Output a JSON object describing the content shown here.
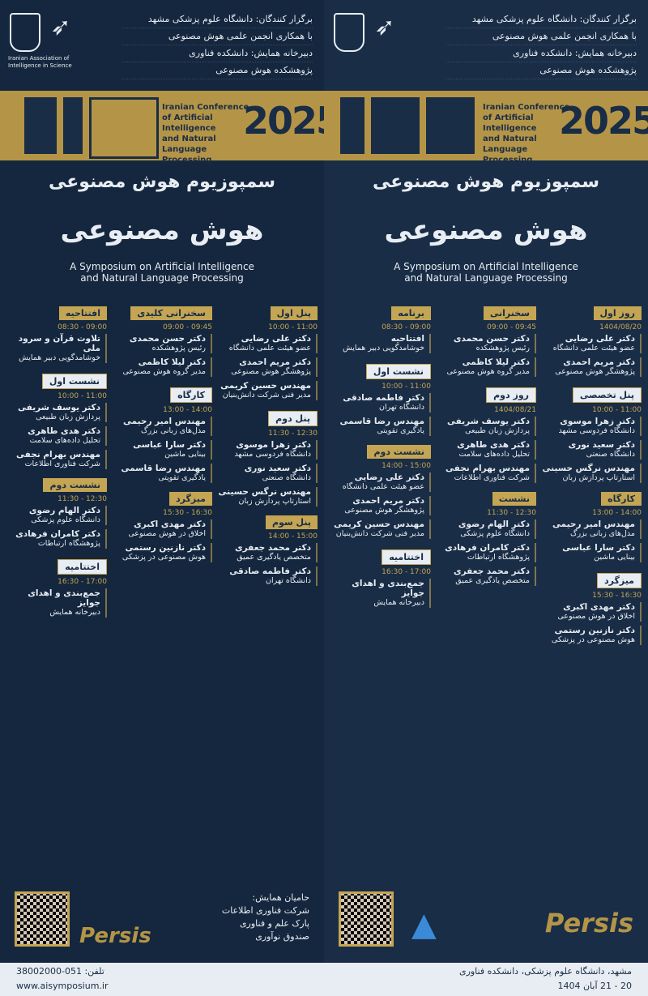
{
  "header": {
    "lines": [
      "برگزار کنندگان: دانشگاه علوم پزشکی مشهد",
      "با همکاری انجمن علمی هوش مصنوعی",
      "دبیرخانه همایش: دانشکده فناوری",
      "پژوهشکده هوش مصنوعی"
    ],
    "logo_caption": "Iranian Association of Intelligence in Science"
  },
  "event": {
    "year": "2025",
    "english_lines": [
      "Iranian Conference",
      "of Artificial Intelligence",
      "and Natural",
      "Language Processing"
    ],
    "title": "سمپوزیوم هوش مصنوعی",
    "title_large": "هوش مصنوعی",
    "subtitle_lines": [
      "A Symposium on Artificial Intelligence",
      "and Natural Language Processing"
    ]
  },
  "left_columns": [
    {
      "sections": [
        {
          "tag": "پنل اول",
          "time": "10:00 - 11:00",
          "entries": [
            {
              "name": "دکتر علی رضایی",
              "role": "عضو هیئت علمی دانشگاه"
            },
            {
              "name": "دکتر مریم احمدی",
              "role": "پژوهشگر هوش مصنوعی"
            },
            {
              "name": "مهندس حسین کریمی",
              "role": "مدیر فنی شرکت دانش‌بنیان"
            }
          ]
        },
        {
          "tag": "پنل دوم",
          "time": "11:30 - 12:30",
          "entries": [
            {
              "name": "دکتر زهرا موسوی",
              "role": "دانشگاه فردوسی مشهد"
            },
            {
              "name": "دکتر سعید نوری",
              "role": "دانشگاه صنعتی"
            },
            {
              "name": "مهندس نرگس حسینی",
              "role": "استارتاپ پردازش زبان"
            }
          ]
        },
        {
          "tag": "پنل سوم",
          "time": "14:00 - 15:00",
          "entries": [
            {
              "name": "دکتر محمد جعفری",
              "role": "متخصص یادگیری عمیق"
            },
            {
              "name": "دکتر فاطمه صادقی",
              "role": "دانشگاه تهران"
            }
          ]
        }
      ]
    },
    {
      "sections": [
        {
          "tag": "سخنرانی کلیدی",
          "time": "09:00 - 09:45",
          "entries": [
            {
              "name": "دکتر حسن محمدی",
              "role": "رئیس پژوهشکده"
            },
            {
              "name": "دکتر لیلا کاظمی",
              "role": "مدیر گروه هوش مصنوعی"
            }
          ]
        },
        {
          "tag": "کارگاه",
          "time": "13:00 - 14:00",
          "entries": [
            {
              "name": "مهندس امیر رحیمی",
              "role": "مدل‌های زبانی بزرگ"
            },
            {
              "name": "دکتر سارا عباسی",
              "role": "بینایی ماشین"
            },
            {
              "name": "مهندس رضا قاسمی",
              "role": "یادگیری تقویتی"
            }
          ]
        },
        {
          "tag": "میزگرد",
          "time": "15:30 - 16:30",
          "entries": [
            {
              "name": "دکتر مهدی اکبری",
              "role": "اخلاق در هوش مصنوعی"
            },
            {
              "name": "دکتر نازنین رستمی",
              "role": "هوش مصنوعی در پزشکی"
            }
          ]
        }
      ]
    },
    {
      "sections": [
        {
          "tag": "افتتاحیه",
          "time": "08:30 - 09:00",
          "entries": [
            {
              "name": "تلاوت قرآن و سرود ملی",
              "role": "خوشامدگویی دبیر همایش"
            }
          ]
        },
        {
          "tag": "نشست اول",
          "time": "10:00 - 11:00",
          "entries": [
            {
              "name": "دکتر یوسف شریفی",
              "role": "پردازش زبان طبیعی"
            },
            {
              "name": "دکتر هدی طاهری",
              "role": "تحلیل داده‌های سلامت"
            },
            {
              "name": "مهندس بهرام نجفی",
              "role": "شرکت فناوری اطلاعات"
            }
          ]
        },
        {
          "tag": "نشست دوم",
          "time": "11:30 - 12:30",
          "entries": [
            {
              "name": "دکتر الهام رضوی",
              "role": "دانشگاه علوم پزشکی"
            },
            {
              "name": "دکتر کامران فرهادی",
              "role": "پژوهشگاه ارتباطات"
            }
          ]
        },
        {
          "tag": "اختتامیه",
          "time": "16:30 - 17:00",
          "entries": [
            {
              "name": "جمع‌بندی و اهدای جوایز",
              "role": "دبیرخانه همایش"
            }
          ]
        }
      ]
    }
  ],
  "right_columns": [
    {
      "sections": [
        {
          "tag": "روز اول",
          "time": "1404/08/20",
          "entries": [
            {
              "name": "دکتر علی رضایی",
              "role": "عضو هیئت علمی دانشگاه"
            },
            {
              "name": "دکتر مریم احمدی",
              "role": "پژوهشگر هوش مصنوعی"
            }
          ]
        },
        {
          "tag": "پنل تخصصی",
          "time": "10:00 - 11:00",
          "entries": [
            {
              "name": "دکتر زهرا موسوی",
              "role": "دانشگاه فردوسی مشهد"
            },
            {
              "name": "دکتر سعید نوری",
              "role": "دانشگاه صنعتی"
            },
            {
              "name": "مهندس نرگس حسینی",
              "role": "استارتاپ پردازش زبان"
            }
          ]
        },
        {
          "tag": "کارگاه",
          "time": "13:00 - 14:00",
          "entries": [
            {
              "name": "مهندس امیر رحیمی",
              "role": "مدل‌های زبانی بزرگ"
            },
            {
              "name": "دکتر سارا عباسی",
              "role": "بینایی ماشین"
            }
          ]
        },
        {
          "tag": "میزگرد",
          "time": "15:30 - 16:30",
          "entries": [
            {
              "name": "دکتر مهدی اکبری",
              "role": "اخلاق در هوش مصنوعی"
            },
            {
              "name": "دکتر نازنین رستمی",
              "role": "هوش مصنوعی در پزشکی"
            }
          ]
        }
      ]
    },
    {
      "sections": [
        {
          "tag": "سخنرانی",
          "time": "09:00 - 09:45",
          "entries": [
            {
              "name": "دکتر حسن محمدی",
              "role": "رئیس پژوهشکده"
            },
            {
              "name": "دکتر لیلا کاظمی",
              "role": "مدیر گروه هوش مصنوعی"
            }
          ]
        },
        {
          "tag": "روز دوم",
          "time": "1404/08/21",
          "entries": [
            {
              "name": "دکتر یوسف شریفی",
              "role": "پردازش زبان طبیعی"
            },
            {
              "name": "دکتر هدی طاهری",
              "role": "تحلیل داده‌های سلامت"
            },
            {
              "name": "مهندس بهرام نجفی",
              "role": "شرکت فناوری اطلاعات"
            }
          ]
        },
        {
          "tag": "نشست",
          "time": "11:30 - 12:30",
          "entries": [
            {
              "name": "دکتر الهام رضوی",
              "role": "دانشگاه علوم پزشکی"
            },
            {
              "name": "دکتر کامران فرهادی",
              "role": "پژوهشگاه ارتباطات"
            },
            {
              "name": "دکتر محمد جعفری",
              "role": "متخصص یادگیری عمیق"
            }
          ]
        }
      ]
    },
    {
      "sections": [
        {
          "tag": "برنامه",
          "time": "08:30 - 09:00",
          "entries": [
            {
              "name": "افتتاحیه",
              "role": "خوشامدگویی دبیر همایش"
            }
          ]
        },
        {
          "tag": "نشست اول",
          "time": "10:00 - 11:00",
          "entries": [
            {
              "name": "دکتر فاطمه صادقی",
              "role": "دانشگاه تهران"
            },
            {
              "name": "مهندس رضا قاسمی",
              "role": "یادگیری تقویتی"
            }
          ]
        },
        {
          "tag": "نشست دوم",
          "time": "14:00 - 15:00",
          "entries": [
            {
              "name": "دکتر علی رضایی",
              "role": "عضو هیئت علمی دانشگاه"
            },
            {
              "name": "دکتر مریم احمدی",
              "role": "پژوهشگر هوش مصنوعی"
            },
            {
              "name": "مهندس حسین کریمی",
              "role": "مدیر فنی شرکت دانش‌بنیان"
            }
          ]
        },
        {
          "tag": "اختتامیه",
          "time": "16:30 - 17:00",
          "entries": [
            {
              "name": "جمع‌بندی و اهدای جوایز",
              "role": "دبیرخانه همایش"
            }
          ]
        }
      ]
    }
  ],
  "footer": {
    "sponsor_lines": [
      "حامیان همایش:",
      "شرکت فناوری اطلاعات",
      "پارک علم و فناوری",
      "صندوق نوآوری"
    ],
    "brand": "Persis",
    "contact": "تلفن: 051-38002000",
    "website": "www.aisymposium.ir",
    "address": "مشهد، دانشگاه علوم پزشکی، دانشکده فناوری",
    "dates": "20 - 21 آبان 1404"
  },
  "colors": {
    "navy": "#16283f",
    "gold": "#b49547",
    "light": "#e8edf3"
  }
}
